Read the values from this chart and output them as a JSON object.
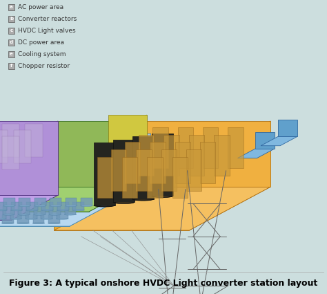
{
  "title": "Figure 3: A typical onshore HVDC Light converter station layout",
  "title_fontsize": 9,
  "background_color": "#ccdede",
  "legend_items": [
    "AC power area",
    "Converter reactors",
    "HVDC Light valves",
    "DC power area",
    "Cooling system",
    "Chopper resistor"
  ],
  "legend_labels": [
    "a",
    "b",
    "c",
    "d",
    "e",
    "f"
  ],
  "fig_width": 4.74,
  "fig_height": 4.25,
  "dpi": 100
}
